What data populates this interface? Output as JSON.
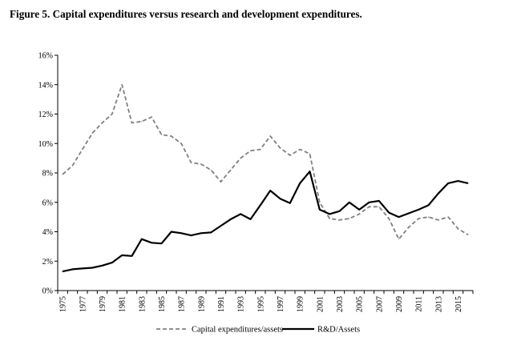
{
  "figure_title": "Figure 5. Capital expenditures versus research and development expenditures.",
  "chart_data": {
    "type": "line",
    "title": "Figure 5. Capital expenditures versus research and development expenditures.",
    "xlabel": "",
    "ylabel": "",
    "x": [
      1975,
      1976,
      1977,
      1978,
      1979,
      1980,
      1981,
      1982,
      1983,
      1984,
      1985,
      1986,
      1987,
      1988,
      1989,
      1990,
      1991,
      1992,
      1993,
      1994,
      1995,
      1996,
      1997,
      1998,
      1999,
      2000,
      2001,
      2002,
      2003,
      2004,
      2005,
      2006,
      2007,
      2008,
      2009,
      2010,
      2011,
      2012,
      2013,
      2014,
      2015,
      2016
    ],
    "x_tick_labels": [
      "1975",
      "1977",
      "1979",
      "1981",
      "1983",
      "1985",
      "1987",
      "1989",
      "1991",
      "1993",
      "1995",
      "1997",
      "1999",
      "2001",
      "2003",
      "2005",
      "2007",
      "2009",
      "2011",
      "2013",
      "2015"
    ],
    "y_tick_labels": [
      "0%",
      "2%",
      "4%",
      "6%",
      "8%",
      "10%",
      "12%",
      "14%",
      "16%"
    ],
    "ylim": [
      0,
      16
    ],
    "grid": false,
    "legend_position": "bottom-center",
    "series": [
      {
        "name": "Capital expenditures/assets",
        "style": "dashed",
        "color": "#808080",
        "values": [
          7.9,
          8.5,
          9.6,
          10.7,
          11.4,
          12.0,
          14.0,
          11.4,
          11.5,
          11.8,
          10.6,
          10.5,
          10.0,
          8.7,
          8.6,
          8.2,
          7.4,
          8.2,
          9.0,
          9.5,
          9.6,
          10.5,
          9.7,
          9.2,
          9.6,
          9.3,
          6.0,
          4.9,
          4.8,
          4.9,
          5.2,
          5.7,
          5.7,
          4.9,
          3.5,
          4.3,
          4.9,
          5.0,
          4.8,
          5.0,
          4.2,
          3.8
        ]
      },
      {
        "name": "R&D/Assets",
        "style": "solid",
        "color": "#000000",
        "values": [
          1.3,
          1.45,
          1.5,
          1.55,
          1.7,
          1.9,
          2.4,
          2.35,
          3.5,
          3.25,
          3.2,
          4.0,
          3.9,
          3.75,
          3.9,
          3.95,
          4.4,
          4.85,
          5.2,
          4.85,
          5.8,
          6.8,
          6.25,
          5.95,
          7.3,
          8.1,
          5.5,
          5.2,
          5.4,
          6.0,
          5.5,
          6.0,
          6.1,
          5.3,
          5.0,
          5.25,
          5.5,
          5.8,
          6.6,
          7.3,
          7.45,
          7.3
        ]
      }
    ]
  }
}
